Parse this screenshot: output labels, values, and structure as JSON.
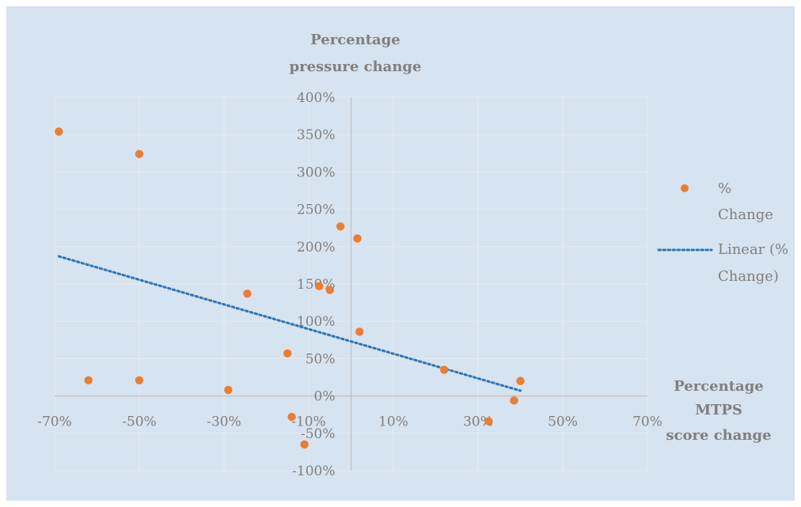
{
  "chart_data": {
    "type": "scatter",
    "title": "",
    "ylabel_lines": [
      "Percentage",
      "pressure change"
    ],
    "xlabel_lines": [
      "Percentage",
      "MTPS",
      "score change"
    ],
    "xlim": [
      -0.7,
      0.7
    ],
    "ylim": [
      -1.0,
      4.0
    ],
    "x_ticks": [
      -0.7,
      -0.5,
      -0.3,
      -0.1,
      0.1,
      0.3,
      0.5,
      0.7
    ],
    "x_tick_labels": [
      "-70%",
      "-50%",
      "-30%",
      "-10%",
      "10%",
      "30%",
      "50%",
      "70%"
    ],
    "y_ticks": [
      -1.0,
      -0.5,
      0,
      0.5,
      1.0,
      1.5,
      2.0,
      2.5,
      3.0,
      3.5,
      4.0
    ],
    "y_tick_labels": [
      "-100%",
      "-50%",
      "0%",
      "50%",
      "100%",
      "150%",
      "200%",
      "250%",
      "300%",
      "350%",
      "400%"
    ],
    "grid": true,
    "legend_position": "right",
    "colors": {
      "background": "#d6e3f0",
      "grid": "#e6ecf2",
      "axis": "#bfbfbf",
      "points": "#ed7d31",
      "trendline": "#2e75b6",
      "text": "#7f7f7f"
    },
    "series": [
      {
        "name": "% Change",
        "x": [
          -0.69,
          -0.62,
          -0.5,
          -0.5,
          -0.29,
          -0.245,
          -0.15,
          -0.14,
          -0.11,
          -0.075,
          -0.05,
          -0.025,
          0.015,
          0.02,
          0.22,
          0.325,
          0.385,
          0.4
        ],
        "y": [
          3.54,
          0.21,
          3.24,
          0.21,
          0.08,
          1.37,
          0.57,
          -0.28,
          -0.65,
          1.47,
          1.42,
          2.27,
          2.11,
          0.86,
          0.35,
          -0.34,
          -0.06,
          0.2
        ]
      }
    ],
    "trendline": {
      "name": "Linear (% Change)",
      "legend_lines": [
        "Linear (%",
        "Change)"
      ],
      "x": [
        -0.69,
        0.4
      ],
      "y": [
        1.87,
        0.07
      ]
    },
    "legend_series_lines": [
      "%",
      "Change"
    ]
  }
}
